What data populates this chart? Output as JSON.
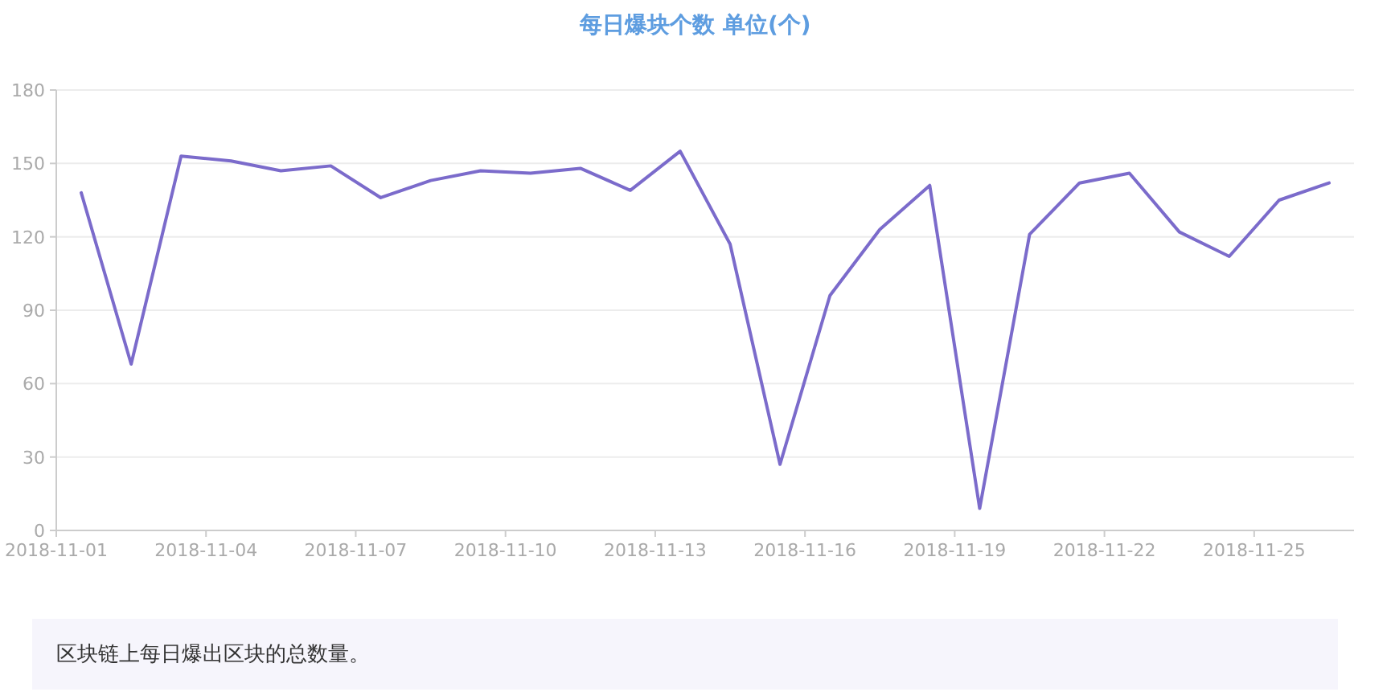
{
  "chart_data": {
    "type": "line",
    "title": "每日爆块个数 单位(个)",
    "x": [
      "2018-11-01T12:00",
      "2018-11-02T12:00",
      "2018-11-03T12:00",
      "2018-11-04T12:00",
      "2018-11-05T12:00",
      "2018-11-06T12:00",
      "2018-11-07T12:00",
      "2018-11-08T12:00",
      "2018-11-09T12:00",
      "2018-11-10T12:00",
      "2018-11-11T12:00",
      "2018-11-12T12:00",
      "2018-11-13T12:00",
      "2018-11-14T12:00",
      "2018-11-15T12:00",
      "2018-11-16T12:00",
      "2018-11-17T12:00",
      "2018-11-18T12:00",
      "2018-11-19T12:00",
      "2018-11-20T12:00",
      "2018-11-21T12:00",
      "2018-11-22T12:00",
      "2018-11-23T12:00",
      "2018-11-24T12:00",
      "2018-11-25T12:00",
      "2018-11-26T12:00"
    ],
    "series": [
      {
        "color": "#7b6bcb",
        "values": [
          138,
          68,
          153,
          151,
          147,
          149,
          136,
          143,
          147,
          146,
          148,
          139,
          155,
          117,
          27,
          96,
          123,
          141,
          9,
          121,
          142,
          146,
          122,
          112,
          135,
          142
        ]
      }
    ],
    "xlim": [
      "2018-11-01",
      "2018-11-27"
    ],
    "xticks": [
      {
        "value": "2018-11-01",
        "label": "2018-11-01"
      },
      {
        "value": "2018-11-04",
        "label": "2018-11-04"
      },
      {
        "value": "2018-11-07",
        "label": "2018-11-07"
      },
      {
        "value": "2018-11-10",
        "label": "2018-11-10"
      },
      {
        "value": "2018-11-13",
        "label": "2018-11-13"
      },
      {
        "value": "2018-11-16",
        "label": "2018-11-16"
      },
      {
        "value": "2018-11-19",
        "label": "2018-11-19"
      },
      {
        "value": "2018-11-22",
        "label": "2018-11-22"
      },
      {
        "value": "2018-11-25",
        "label": "2018-11-25"
      }
    ],
    "ylim": [
      0,
      180
    ],
    "yticks": [
      0,
      30,
      60,
      90,
      120,
      150,
      180
    ],
    "grid": "y",
    "marker": "none",
    "line_style": "solid",
    "annotations": [
      "区块链上每日爆出区块的总数量。"
    ]
  }
}
